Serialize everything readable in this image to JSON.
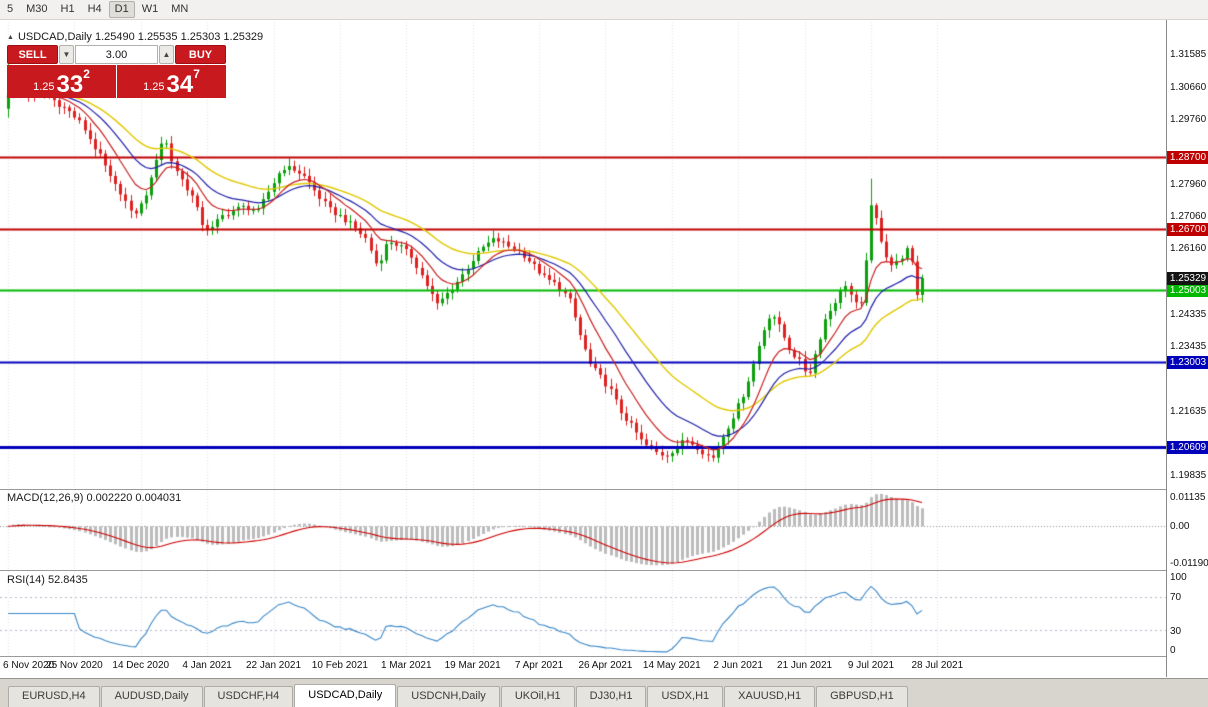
{
  "toolbar": {
    "timeframes": [
      "5",
      "M30",
      "H1",
      "H4",
      "D1",
      "W1",
      "MN"
    ],
    "active_timeframe": "D1"
  },
  "chart": {
    "header_text": "USDCAD,Daily 1.25490 1.25535 1.25303 1.25329"
  },
  "trade_panel": {
    "sell_label": "SELL",
    "buy_label": "BUY",
    "volume": "3.00",
    "sell_price": {
      "prefix": "1.25",
      "pips": "33",
      "point": "2"
    },
    "buy_price": {
      "prefix": "1.25",
      "pips": "34",
      "point": "7"
    },
    "panel_color": "#c8191e"
  },
  "indicators": {
    "macd_label": "MACD(12,26,9) 0.002220 0.004031",
    "rsi_label": "RSI(14) 52.8435",
    "macd_axis_labels": [
      "0.01135",
      "0.00",
      "-0.01190"
    ],
    "rsi_axis_labels": [
      "100",
      "70",
      "30",
      "0"
    ]
  },
  "tabs": [
    {
      "label": "EURUSD,H4",
      "active": false
    },
    {
      "label": "AUDUSD,Daily",
      "active": false
    },
    {
      "label": "USDCHF,H4",
      "active": false
    },
    {
      "label": "USDCAD,Daily",
      "active": true
    },
    {
      "label": "USDCNH,Daily",
      "active": false
    },
    {
      "label": "UKOil,H1",
      "active": false
    },
    {
      "label": "DJ30,H1",
      "active": false
    },
    {
      "label": "USDX,H1",
      "active": false
    },
    {
      "label": "XAUUSD,H1",
      "active": false
    },
    {
      "label": "GBPUSD,H1",
      "active": false
    }
  ],
  "chart_data": {
    "type": "candlestick",
    "symbol": "USDCAD",
    "timeframe": "Daily",
    "ohlc": {
      "open": "1.25490",
      "high": "1.25535",
      "low": "1.25303",
      "close": "1.25329"
    },
    "y_axis_ticks": [
      "1.31585",
      "1.30660",
      "1.29760",
      "1.27960",
      "1.27060",
      "1.26160",
      "1.24335",
      "1.23435",
      "1.21635",
      "1.19835"
    ],
    "x_labels": [
      "6 Nov 2020",
      "25 Nov 2020",
      "14 Dec 2020",
      "4 Jan 2021",
      "22 Jan 2021",
      "10 Feb 2021",
      "1 Mar 2021",
      "19 Mar 2021",
      "7 Apr 2021",
      "26 Apr 2021",
      "14 May 2021",
      "2 Jun 2021",
      "21 Jun 2021",
      "9 Jul 2021",
      "28 Jul 2021"
    ],
    "price_range": {
      "top": 1.3255,
      "bottom": 1.1945
    },
    "candle_count": 180,
    "hlines": [
      {
        "price": 1.287,
        "label": "1.28700",
        "color": "#c00000",
        "width": 2
      },
      {
        "price": 1.267,
        "label": "1.26700",
        "color": "#c00000",
        "width": 2
      },
      {
        "price": 1.25003,
        "label": "1.25003",
        "color": "#00b800",
        "width": 2
      },
      {
        "price": 1.23003,
        "label": "1.23003",
        "color": "#0000bb",
        "width": 2
      },
      {
        "price": 1.20609,
        "label": "1.20609",
        "color": "#0000bb",
        "width": 3
      }
    ],
    "current_price": {
      "value": 1.25329,
      "label": "1.25329",
      "color": "#141414"
    },
    "ma_periods": {
      "fast": 9,
      "mid": 18,
      "slow": 32
    },
    "colors": {
      "candle_up": "#0ca00c",
      "candle_down": "#dd2222",
      "ma_fast": "#c82020",
      "ma_mid": "#2020a8",
      "ma_slow": "#e0c800",
      "macd_hist": "#bcbcbc",
      "macd_signal": "#cc0000",
      "rsi_line": "#3a87c8",
      "grid": "#e6e6e6"
    },
    "price_anchors": [
      [
        8,
        1.305
      ],
      [
        12,
        1.311
      ],
      [
        22,
        1.306
      ],
      [
        34,
        1.3035
      ],
      [
        46,
        1.3045
      ],
      [
        58,
        1.302
      ],
      [
        70,
        1.2995
      ],
      [
        82,
        1.296
      ],
      [
        94,
        1.29
      ],
      [
        102,
        1.2862
      ],
      [
        112,
        1.28
      ],
      [
        122,
        1.2768
      ],
      [
        132,
        1.2705
      ],
      [
        140,
        1.2732
      ],
      [
        150,
        1.2795
      ],
      [
        158,
        1.289
      ],
      [
        164,
        1.2928
      ],
      [
        172,
        1.2855
      ],
      [
        182,
        1.2805
      ],
      [
        192,
        1.276
      ],
      [
        202,
        1.2685
      ],
      [
        210,
        1.2662
      ],
      [
        220,
        1.2702
      ],
      [
        232,
        1.2722
      ],
      [
        245,
        1.2732
      ],
      [
        258,
        1.2718
      ],
      [
        270,
        1.2782
      ],
      [
        282,
        1.2842
      ],
      [
        295,
        1.2835
      ],
      [
        306,
        1.2812
      ],
      [
        318,
        1.2762
      ],
      [
        330,
        1.2722
      ],
      [
        342,
        1.2702
      ],
      [
        355,
        1.2672
      ],
      [
        366,
        1.2642
      ],
      [
        377,
        1.2565
      ],
      [
        388,
        1.2638
      ],
      [
        400,
        1.2622
      ],
      [
        412,
        1.2592
      ],
      [
        425,
        1.2522
      ],
      [
        437,
        1.2458
      ],
      [
        448,
        1.2492
      ],
      [
        460,
        1.2532
      ],
      [
        472,
        1.2582
      ],
      [
        484,
        1.2622
      ],
      [
        495,
        1.2642
      ],
      [
        508,
        1.2622
      ],
      [
        520,
        1.2608
      ],
      [
        532,
        1.2572
      ],
      [
        545,
        1.2532
      ],
      [
        558,
        1.2512
      ],
      [
        570,
        1.2468
      ],
      [
        580,
        1.2372
      ],
      [
        590,
        1.2292
      ],
      [
        600,
        1.2258
      ],
      [
        610,
        1.2222
      ],
      [
        620,
        1.2162
      ],
      [
        632,
        1.2118
      ],
      [
        643,
        1.2072
      ],
      [
        655,
        1.2048
      ],
      [
        665,
        1.2038
      ],
      [
        675,
        1.2058
      ],
      [
        685,
        1.2082
      ],
      [
        695,
        1.2068
      ],
      [
        703,
        1.2048
      ],
      [
        712,
        1.2028
      ],
      [
        722,
        1.2088
      ],
      [
        732,
        1.2142
      ],
      [
        742,
        1.2198
      ],
      [
        752,
        1.2278
      ],
      [
        762,
        1.2378
      ],
      [
        771,
        1.2442
      ],
      [
        780,
        1.2392
      ],
      [
        790,
        1.2332
      ],
      [
        800,
        1.2298
      ],
      [
        808,
        1.2258
      ],
      [
        816,
        1.2332
      ],
      [
        825,
        1.2418
      ],
      [
        835,
        1.2468
      ],
      [
        845,
        1.2518
      ],
      [
        853,
        1.2472
      ],
      [
        860,
        1.2438
      ],
      [
        867,
        1.2618
      ],
      [
        872,
        1.2758
      ],
      [
        877,
        1.2682
      ],
      [
        885,
        1.2602
      ],
      [
        893,
        1.2562
      ],
      [
        900,
        1.2588
      ],
      [
        907,
        1.2612
      ],
      [
        913,
        1.2562
      ],
      [
        918,
        1.2468
      ],
      [
        922,
        1.25329
      ]
    ]
  }
}
